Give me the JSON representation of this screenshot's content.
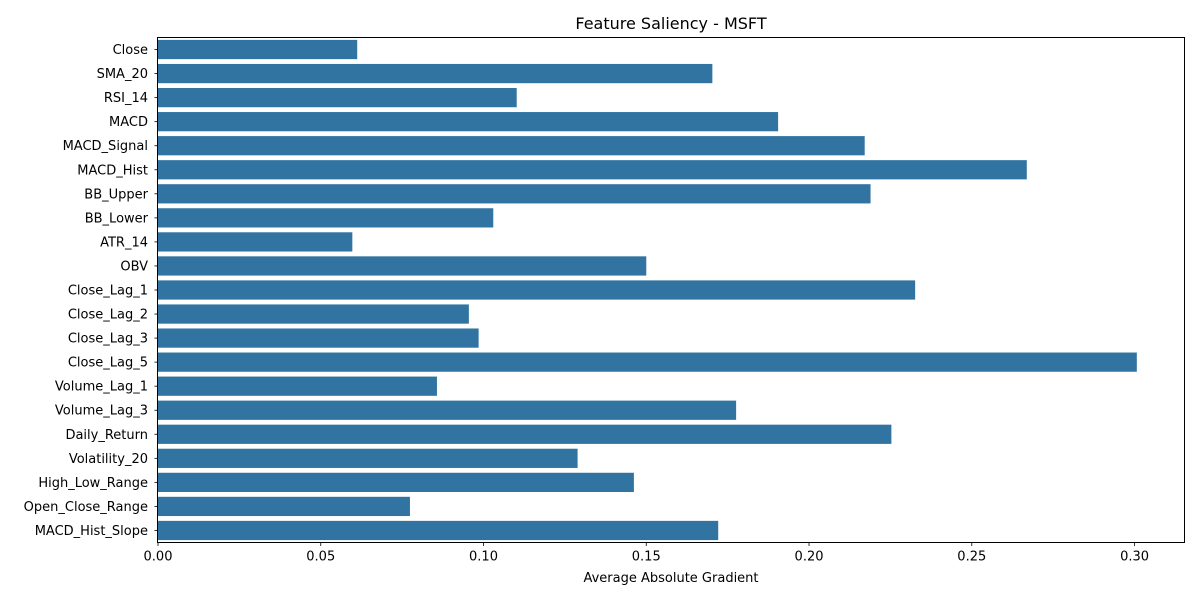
{
  "chart_data": {
    "type": "bar",
    "orientation": "horizontal",
    "title": "Feature Saliency - MSFT",
    "xlabel": "Average Absolute Gradient",
    "ylabel": "",
    "xlim": [
      0,
      0.3155
    ],
    "xticks": [
      0.0,
      0.05,
      0.1,
      0.15,
      0.2,
      0.25,
      0.3
    ],
    "xtick_labels": [
      "0.00",
      "0.05",
      "0.10",
      "0.15",
      "0.20",
      "0.25",
      "0.30"
    ],
    "grid": false,
    "bar_color": "#3274a1",
    "categories": [
      "Close",
      "SMA_20",
      "RSI_14",
      "MACD",
      "MACD_Signal",
      "MACD_Hist",
      "BB_Upper",
      "BB_Lower",
      "ATR_14",
      "OBV",
      "Close_Lag_1",
      "Close_Lag_2",
      "Close_Lag_3",
      "Close_Lag_5",
      "Volume_Lag_1",
      "Volume_Lag_3",
      "Daily_Return",
      "Volatility_20",
      "High_Low_Range",
      "Open_Close_Range",
      "MACD_Hist_Slope"
    ],
    "values": [
      0.0612,
      0.1703,
      0.1102,
      0.1905,
      0.2171,
      0.2669,
      0.2189,
      0.103,
      0.0597,
      0.15,
      0.2326,
      0.0955,
      0.0985,
      0.3007,
      0.0857,
      0.1776,
      0.2253,
      0.1289,
      0.1462,
      0.0774,
      0.1721
    ]
  }
}
